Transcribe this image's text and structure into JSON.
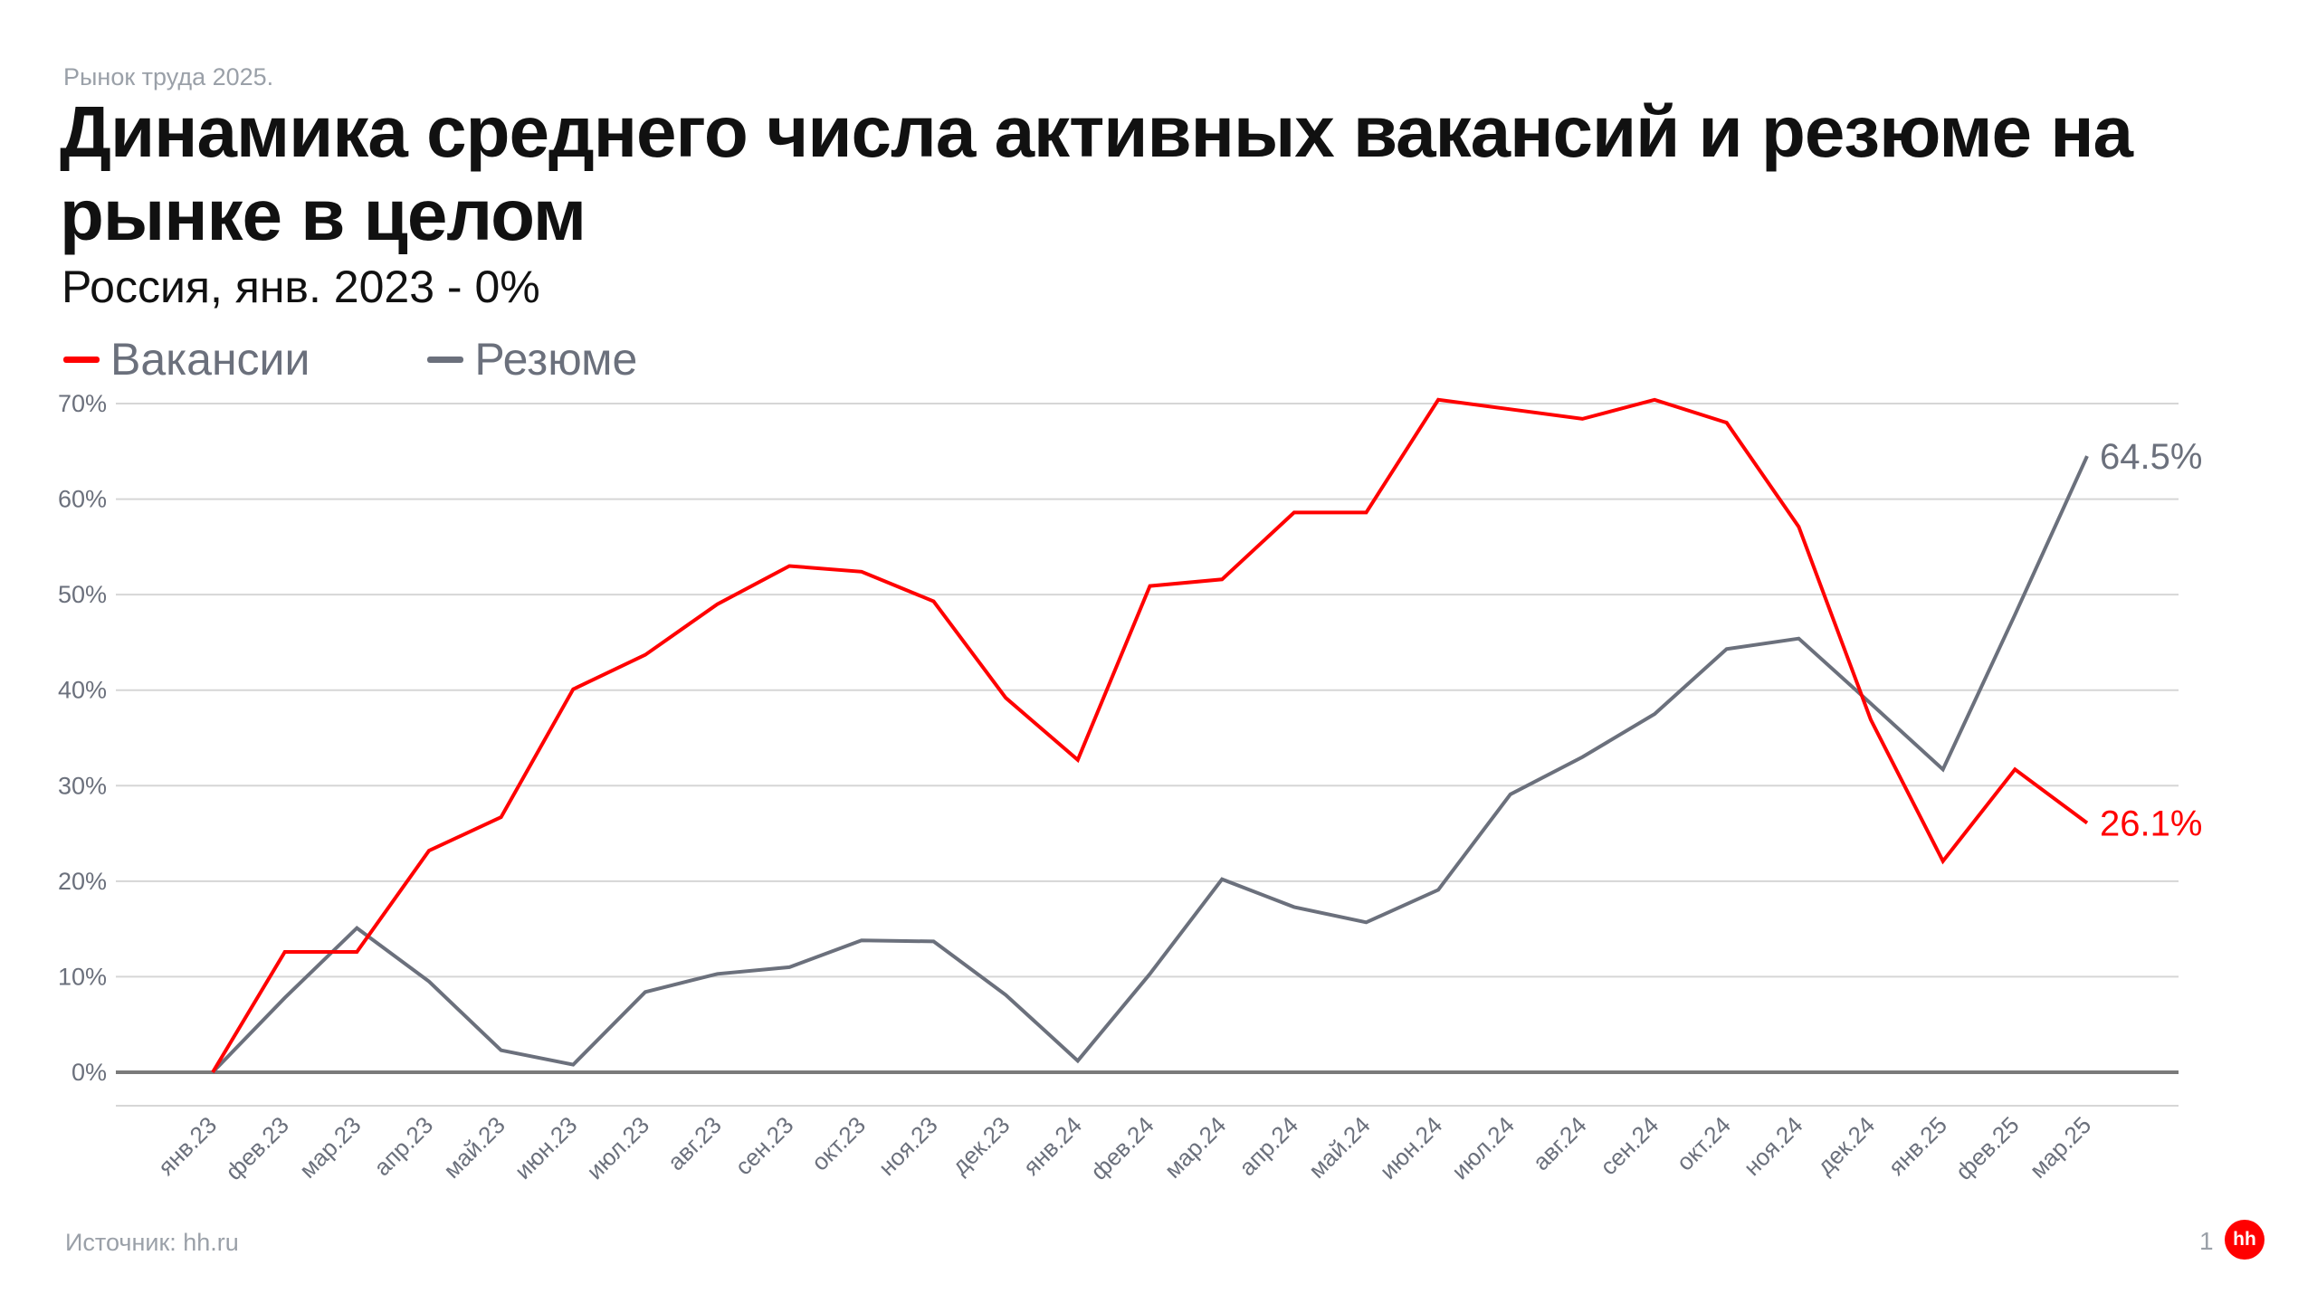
{
  "kicker": "Рынок труда 2025.",
  "footer": {
    "source": "Источник: hh.ru",
    "page": "1",
    "logo": "hh"
  },
  "chart_data": {
    "type": "line",
    "title": "Динамика среднего числа активных вакансий и резюме на рынке в целом",
    "subtitle": "Россия, янв. 2023 - 0%",
    "xlabel": "",
    "ylabel": "",
    "ylim": [
      0,
      70
    ],
    "yticks": [
      "0%",
      "10%",
      "20%",
      "30%",
      "40%",
      "50%",
      "60%",
      "70%"
    ],
    "grid": true,
    "legend_position": "top-left",
    "categories": [
      "янв.23",
      "фев.23",
      "мар.23",
      "апр.23",
      "май.23",
      "июн.23",
      "июл.23",
      "авг.23",
      "сен.23",
      "окт.23",
      "ноя.23",
      "дек.23",
      "янв.24",
      "фев.24",
      "мар.24",
      "апр.24",
      "май.24",
      "июн.24",
      "июл.24",
      "авг.24",
      "сен.24",
      "окт.24",
      "ноя.24",
      "дек.24",
      "янв.25",
      "фев.25",
      "мар.25"
    ],
    "series": [
      {
        "name": "Вакансии",
        "color": "#ff0000",
        "end_label": "26.1%",
        "values": [
          0,
          12.6,
          12.6,
          23.2,
          26.7,
          40.1,
          43.7,
          49.0,
          53.0,
          52.4,
          49.3,
          39.2,
          32.7,
          50.9,
          51.6,
          58.6,
          58.6,
          70.4,
          69.4,
          68.4,
          70.4,
          68.0,
          57.1,
          36.9,
          22.1,
          31.7,
          26.1
        ]
      },
      {
        "name": "Резюме",
        "color": "#6b707c",
        "end_label": "64.5%",
        "values": [
          0,
          7.8,
          15.1,
          9.5,
          2.3,
          0.8,
          8.4,
          10.3,
          11.0,
          13.8,
          13.7,
          8.1,
          1.2,
          10.3,
          20.2,
          17.3,
          15.7,
          19.1,
          29.1,
          33.0,
          37.5,
          44.3,
          45.4,
          38.6,
          31.7,
          47.9,
          64.5
        ]
      }
    ]
  }
}
